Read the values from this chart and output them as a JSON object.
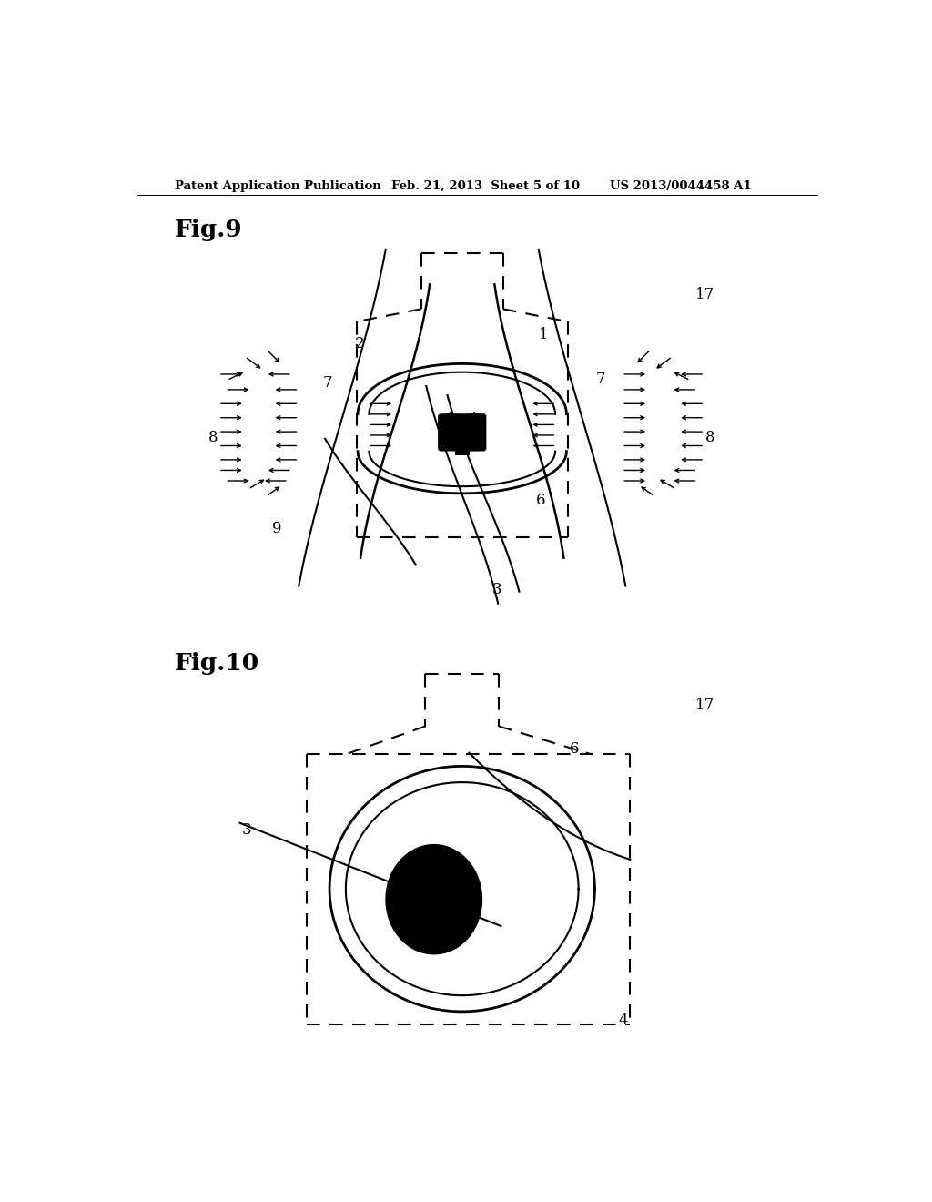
{
  "header_left": "Patent Application Publication",
  "header_mid": "Feb. 21, 2013  Sheet 5 of 10",
  "header_right": "US 2013/0044458 A1",
  "fig9_label": "Fig.9",
  "fig10_label": "Fig.10",
  "label_17": "17",
  "background_color": "#ffffff",
  "line_color": "#000000"
}
